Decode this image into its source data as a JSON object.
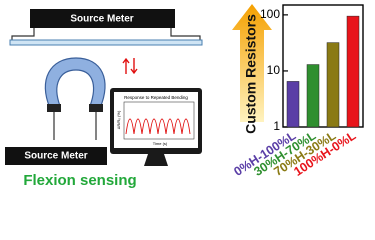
{
  "diagram": {
    "meter_top": "Source Meter",
    "meter_bottom": "Source Meter",
    "monitor_title": "Response to Repeated Bending",
    "monitor_xlabel": "Time (s)",
    "monitor_ylabel": "ΔR/R₀ (%)",
    "caption": "Flexion sensing",
    "arrow_label": "Custom Resistors"
  },
  "chart_data": {
    "type": "bar",
    "categories": [
      "0%H-100%L",
      "30%H-70%L",
      "70%H-30%L",
      "100%H-0%L"
    ],
    "values": [
      6.5,
      13,
      32,
      95
    ],
    "colors": [
      "#5a3ea6",
      "#2f8f2f",
      "#8a7a14",
      "#e8141b"
    ],
    "ylim": [
      1,
      150
    ],
    "yticks": [
      1,
      10,
      100
    ],
    "log_y": true,
    "grid": false
  }
}
